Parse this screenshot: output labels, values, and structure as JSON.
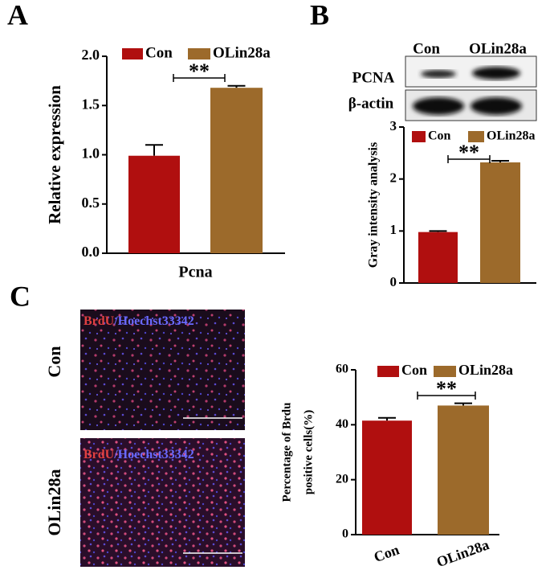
{
  "panels": {
    "a": "A",
    "b": "B",
    "c": "C"
  },
  "blot": {
    "columns": [
      "Con",
      "OLin28a"
    ],
    "rows": [
      "PCNA",
      "β-actin"
    ]
  },
  "images": {
    "rows": [
      "Con",
      "OLin28a"
    ],
    "stain": "BrdU",
    "counterstain": "/Hoechst33342"
  },
  "chart_data": [
    {
      "type": "bar",
      "ylabel": "Relative expression",
      "categories": [
        "Pcna"
      ],
      "series": [
        {
          "name": "Con",
          "color": "#b00f0f",
          "values": [
            0.99
          ],
          "errors": [
            0.11
          ]
        },
        {
          "name": "OLin28a",
          "color": "#9c6a2b",
          "values": [
            1.68
          ],
          "errors": [
            0.02
          ]
        }
      ],
      "ylim": [
        0,
        2
      ],
      "yticks": [
        {
          "value": 0,
          "label": "0.0"
        },
        {
          "value": 0.5,
          "label": "0.5"
        },
        {
          "value": 1,
          "label": "1.0"
        },
        {
          "value": 1.5,
          "label": "1.5"
        },
        {
          "value": 2,
          "label": "2.0"
        }
      ],
      "annotation": "**"
    },
    {
      "type": "bar",
      "ylabel": "Gray intensity analysis",
      "categories": [
        null
      ],
      "series": [
        {
          "name": "Con",
          "color": "#b00f0f",
          "values": [
            0.98
          ],
          "errors": [
            0.02
          ]
        },
        {
          "name": "OLin28a",
          "color": "#9c6a2b",
          "values": [
            2.32
          ],
          "errors": [
            0.03
          ]
        }
      ],
      "ylim": [
        0,
        3
      ],
      "yticks": [
        0,
        1,
        2,
        3
      ],
      "annotation": "**"
    },
    {
      "type": "bar",
      "ylabel": [
        "Percentage of Brdu",
        "positive cells(%)"
      ],
      "categories": [
        "Con",
        "OLin28a"
      ],
      "series": [
        {
          "name": "Con",
          "color": "#b00f0f",
          "values": [
            41.5,
            null
          ],
          "errors": [
            1,
            null
          ]
        },
        {
          "name": "OLin28a",
          "color": "#9c6a2b",
          "values": [
            null,
            47
          ],
          "errors": [
            null,
            0.8
          ]
        }
      ],
      "ylim": [
        0,
        60
      ],
      "yticks": [
        0,
        20,
        40,
        60
      ],
      "annotation": "**"
    }
  ]
}
